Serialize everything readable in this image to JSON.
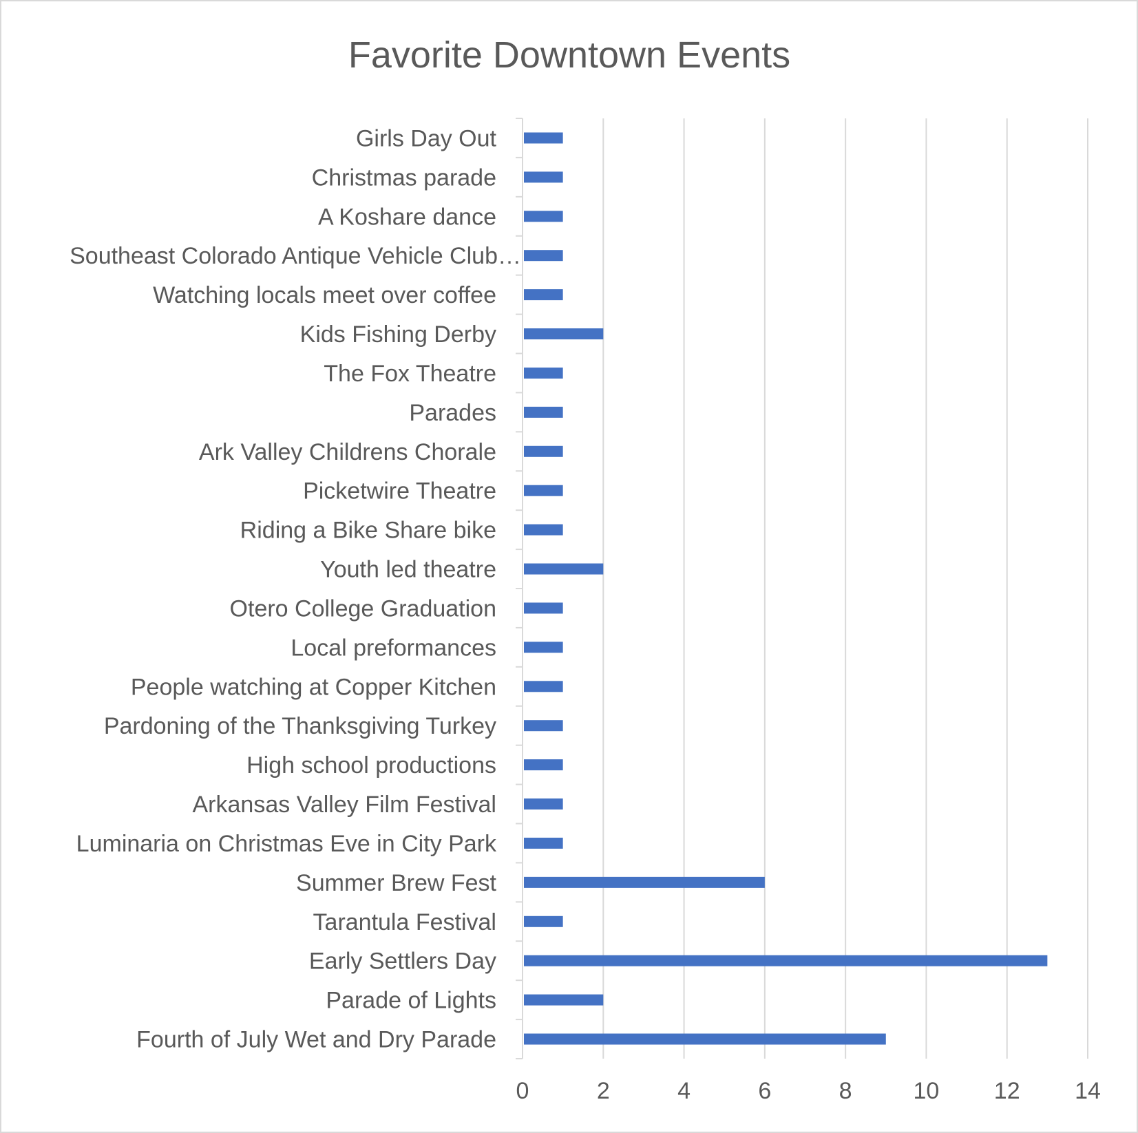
{
  "chart_data": {
    "type": "bar",
    "orientation": "horizontal",
    "title": "Favorite Downtown Events",
    "xlabel": "",
    "ylabel": "",
    "xlim": [
      0,
      14
    ],
    "xticks": [
      0,
      2,
      4,
      6,
      8,
      10,
      12,
      14
    ],
    "grid": "vertical",
    "bar_color": "#4472c4",
    "categories": [
      "Girls Day Out",
      "Christmas parade",
      "A Koshare dance",
      "Southeast Colorado Antique Vehicle Club…",
      "Watching locals meet over coffee",
      "Kids Fishing Derby",
      "The Fox Theatre",
      "Parades",
      "Ark Valley Childrens Chorale",
      "Picketwire Theatre",
      "Riding a Bike Share bike",
      "Youth led theatre",
      "Otero College Graduation",
      "Local preformances",
      "People watching at Copper Kitchen",
      "Pardoning of the Thanksgiving Turkey",
      "High school productions",
      "Arkansas Valley Film Festival",
      "Luminaria on Christmas Eve in City Park",
      "Summer Brew Fest",
      "Tarantula Festival",
      "Early Settlers Day",
      "Parade of Lights",
      "Fourth of July Wet and Dry Parade"
    ],
    "values": [
      1,
      1,
      1,
      1,
      1,
      2,
      1,
      1,
      1,
      1,
      1,
      2,
      1,
      1,
      1,
      1,
      1,
      1,
      1,
      6,
      1,
      13,
      2,
      9
    ]
  }
}
